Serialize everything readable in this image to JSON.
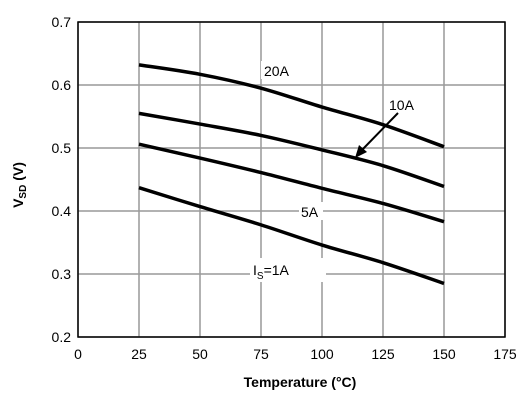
{
  "chart_data": {
    "type": "line",
    "xlabel": "Temperature (°C)",
    "ylabel": {
      "main": "V",
      "sub": "SD",
      "tail": " (V)"
    },
    "xlim": [
      0,
      175
    ],
    "ylim": [
      0.2,
      0.7
    ],
    "x_ticks": [
      "0",
      "25",
      "50",
      "75",
      "100",
      "125",
      "150",
      "175"
    ],
    "y_ticks": [
      "0.2",
      "0.3",
      "0.4",
      "0.5",
      "0.6",
      "0.7"
    ],
    "grid": true,
    "series": [
      {
        "name": "20A",
        "x": [
          25,
          50,
          75,
          100,
          125,
          150
        ],
        "y": [
          0.632,
          0.617,
          0.595,
          0.565,
          0.537,
          0.502
        ]
      },
      {
        "name": "10A",
        "x": [
          25,
          50,
          75,
          100,
          125,
          150
        ],
        "y": [
          0.555,
          0.538,
          0.52,
          0.497,
          0.472,
          0.439
        ]
      },
      {
        "name": "5A",
        "x": [
          25,
          50,
          75,
          100,
          125,
          150
        ],
        "y": [
          0.506,
          0.484,
          0.461,
          0.436,
          0.412,
          0.383
        ]
      },
      {
        "name": "IS=1A",
        "x": [
          25,
          50,
          75,
          100,
          125,
          150
        ],
        "y": [
          0.437,
          0.407,
          0.378,
          0.346,
          0.318,
          0.285
        ]
      }
    ],
    "annotations": {
      "a20": "20A",
      "a10": "10A",
      "a5": "5A",
      "a1_main": "I",
      "a1_sub": "S",
      "a1_tail": "=1A"
    }
  }
}
